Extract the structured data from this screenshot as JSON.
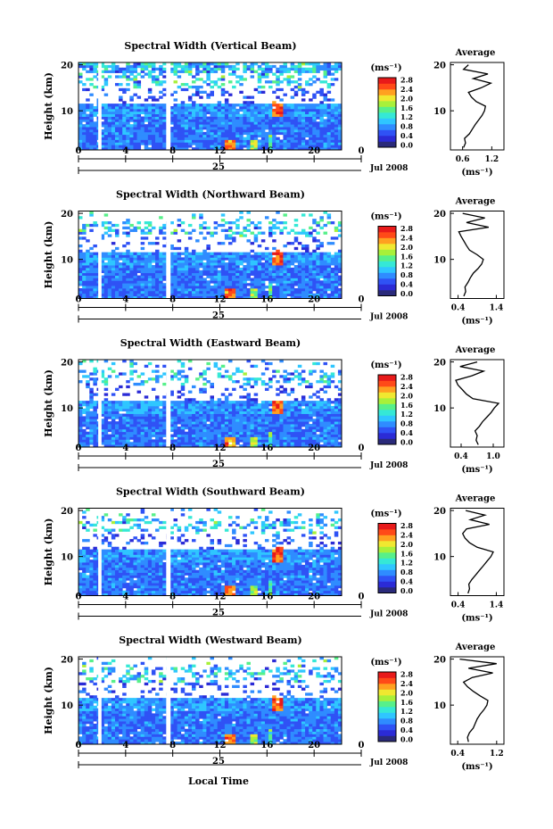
{
  "figure": {
    "x_axis_title": "Local Time",
    "date_label": "25",
    "month_label": "Jul 2008",
    "y_axis_title": "Height (km)",
    "cbar_unit": "(ms⁻¹)",
    "avg_title": "Average",
    "avg_xlabel": "(ms⁻¹)"
  },
  "colors": {
    "scale": [
      "#2a2a7a",
      "#2b2bd6",
      "#2f52f5",
      "#2f8cff",
      "#2fc6ff",
      "#35e8d6",
      "#57f08a",
      "#a8f03a",
      "#f0e830",
      "#ffa020",
      "#ff4a18",
      "#e81a1a"
    ]
  },
  "chart_data": [
    {
      "type": "heatmap",
      "title": "Spectral Width (Vertical Beam)",
      "xlabel": "Local Time",
      "ylabel": "Height (km)",
      "x_ticks": [
        "0",
        "4",
        "8",
        "12",
        "16",
        "20",
        "0"
      ],
      "xlim": [
        0,
        24
      ],
      "y_ticks": [
        "10",
        "20"
      ],
      "ylim": [
        1.5,
        20.5
      ],
      "data_gaps_hours": [
        [
          1.8,
          2.1
        ],
        [
          8.0,
          8.4
        ]
      ],
      "colorbar": {
        "unit": "(ms⁻¹)",
        "ticks": [
          "0.0",
          "0.4",
          "0.8",
          "1.2",
          "1.6",
          "2.0",
          "2.4",
          "2.8"
        ],
        "range": [
          0.0,
          3.0
        ]
      },
      "average_profile": {
        "title": "Average",
        "xlabel": "(ms⁻¹)",
        "x_ticks": [
          "0.6",
          "1.2"
        ],
        "xlim": [
          0.35,
          1.45
        ],
        "y_ticks": [
          "10",
          "20"
        ],
        "ylim": [
          1.5,
          20.5
        ],
        "height_km": [
          2,
          3,
          4,
          5,
          6,
          7,
          8,
          9,
          10,
          11,
          12,
          13,
          14,
          15,
          16,
          17,
          18,
          19,
          20
        ],
        "width_ms": [
          0.62,
          0.66,
          0.64,
          0.74,
          0.8,
          0.86,
          0.93,
          1.0,
          1.05,
          1.07,
          0.88,
          0.78,
          0.72,
          0.98,
          1.18,
          0.82,
          1.12,
          0.62,
          0.72
        ]
      }
    },
    {
      "type": "heatmap",
      "title": "Spectral Width (Northward Beam)",
      "xlabel": "Local Time",
      "ylabel": "Height (km)",
      "x_ticks": [
        "0",
        "4",
        "8",
        "12",
        "16",
        "20",
        "0"
      ],
      "xlim": [
        0,
        24
      ],
      "y_ticks": [
        "10",
        "20"
      ],
      "ylim": [
        1.5,
        20.5
      ],
      "data_gaps_hours": [
        [
          1.8,
          2.1
        ],
        [
          8.0,
          8.4
        ]
      ],
      "colorbar": {
        "unit": "(ms⁻¹)",
        "ticks": [
          "0.0",
          "0.4",
          "0.8",
          "1.2",
          "1.6",
          "2.0",
          "2.4",
          "2.8"
        ],
        "range": [
          0.0,
          3.0
        ]
      },
      "average_profile": {
        "title": "Average",
        "xlabel": "(ms⁻¹)",
        "x_ticks": [
          "0.4",
          "1.4"
        ],
        "xlim": [
          0.2,
          1.6
        ],
        "height_km": [
          2,
          3,
          4,
          5,
          6,
          7,
          8,
          9,
          10,
          11,
          12,
          13,
          14,
          15,
          16,
          17,
          18,
          19,
          20
        ],
        "width_ms": [
          0.55,
          0.6,
          0.58,
          0.66,
          0.72,
          0.8,
          0.92,
          1.02,
          1.06,
          0.9,
          0.7,
          0.62,
          0.55,
          0.48,
          0.42,
          1.2,
          0.62,
          1.1,
          0.52
        ]
      }
    },
    {
      "type": "heatmap",
      "title": "Spectral Width (Eastward Beam)",
      "xlabel": "Local Time",
      "ylabel": "Height (km)",
      "x_ticks": [
        "0",
        "4",
        "8",
        "12",
        "16",
        "20",
        "0"
      ],
      "xlim": [
        0,
        24
      ],
      "y_ticks": [
        "10",
        "20"
      ],
      "ylim": [
        1.5,
        20.5
      ],
      "data_gaps_hours": [
        [
          1.8,
          2.1
        ],
        [
          8.0,
          8.4
        ]
      ],
      "colorbar": {
        "unit": "(ms⁻¹)",
        "ticks": [
          "0.0",
          "0.4",
          "0.8",
          "1.2",
          "1.6",
          "2.0",
          "2.4",
          "2.8"
        ],
        "range": [
          0.0,
          3.0
        ]
      },
      "average_profile": {
        "title": "Average",
        "xlabel": "(ms⁻¹)",
        "x_ticks": [
          "0.4",
          "1.0"
        ],
        "xlim": [
          0.2,
          1.2
        ],
        "height_km": [
          2,
          3,
          4,
          5,
          6,
          7,
          8,
          9,
          10,
          11,
          12,
          13,
          14,
          15,
          16,
          17,
          18,
          19,
          20
        ],
        "width_ms": [
          0.72,
          0.68,
          0.7,
          0.66,
          0.74,
          0.8,
          0.88,
          0.96,
          1.02,
          1.1,
          0.62,
          0.5,
          0.42,
          0.34,
          0.3,
          0.6,
          0.82,
          0.38,
          0.7
        ]
      }
    },
    {
      "type": "heatmap",
      "title": "Spectral Width (Southward Beam)",
      "xlabel": "Local Time",
      "ylabel": "Height (km)",
      "x_ticks": [
        "0",
        "4",
        "8",
        "12",
        "16",
        "20",
        "0"
      ],
      "xlim": [
        0,
        24
      ],
      "y_ticks": [
        "10",
        "20"
      ],
      "ylim": [
        1.5,
        20.5
      ],
      "data_gaps_hours": [
        [
          1.8,
          2.1
        ],
        [
          8.0,
          8.4
        ]
      ],
      "colorbar": {
        "unit": "(ms⁻¹)",
        "ticks": [
          "0.0",
          "0.4",
          "0.8",
          "1.2",
          "1.6",
          "2.0",
          "2.4",
          "2.8"
        ],
        "range": [
          0.0,
          3.0
        ]
      },
      "average_profile": {
        "title": "Average",
        "xlabel": "(ms⁻¹)",
        "x_ticks": [
          "0.4",
          "1.4"
        ],
        "xlim": [
          0.2,
          1.6
        ],
        "height_km": [
          2,
          3,
          4,
          5,
          6,
          7,
          8,
          9,
          10,
          11,
          12,
          13,
          14,
          15,
          16,
          17,
          18,
          19,
          20
        ],
        "width_ms": [
          0.66,
          0.7,
          0.68,
          0.76,
          0.86,
          0.96,
          1.06,
          1.16,
          1.26,
          1.32,
          0.9,
          0.7,
          0.58,
          0.52,
          0.62,
          1.22,
          0.72,
          1.1,
          0.6
        ]
      }
    },
    {
      "type": "heatmap",
      "title": "Spectral Width (Westward Beam)",
      "xlabel": "Local Time",
      "ylabel": "Height (km)",
      "x_ticks": [
        "0",
        "4",
        "8",
        "12",
        "16",
        "20",
        "0"
      ],
      "xlim": [
        0,
        24
      ],
      "y_ticks": [
        "10",
        "20"
      ],
      "ylim": [
        1.5,
        20.5
      ],
      "data_gaps_hours": [
        [
          1.8,
          2.1
        ],
        [
          8.0,
          8.4
        ]
      ],
      "colorbar": {
        "unit": "(ms⁻¹)",
        "ticks": [
          "0.0",
          "0.4",
          "0.8",
          "1.2",
          "1.6",
          "2.0",
          "2.4",
          "2.8"
        ],
        "range": [
          0.0,
          3.0
        ]
      },
      "average_profile": {
        "title": "Average",
        "xlabel": "(ms⁻¹)",
        "x_ticks": [
          "0.4",
          "1.2"
        ],
        "xlim": [
          0.25,
          1.35
        ],
        "height_km": [
          2,
          3,
          4,
          5,
          6,
          7,
          8,
          9,
          10,
          11,
          12,
          13,
          14,
          15,
          16,
          17,
          18,
          19,
          20
        ],
        "width_ms": [
          0.62,
          0.6,
          0.64,
          0.72,
          0.76,
          0.8,
          0.86,
          0.94,
          1.0,
          1.02,
          0.86,
          0.72,
          0.6,
          0.52,
          0.7,
          1.12,
          0.62,
          1.2,
          0.44
        ]
      }
    }
  ]
}
